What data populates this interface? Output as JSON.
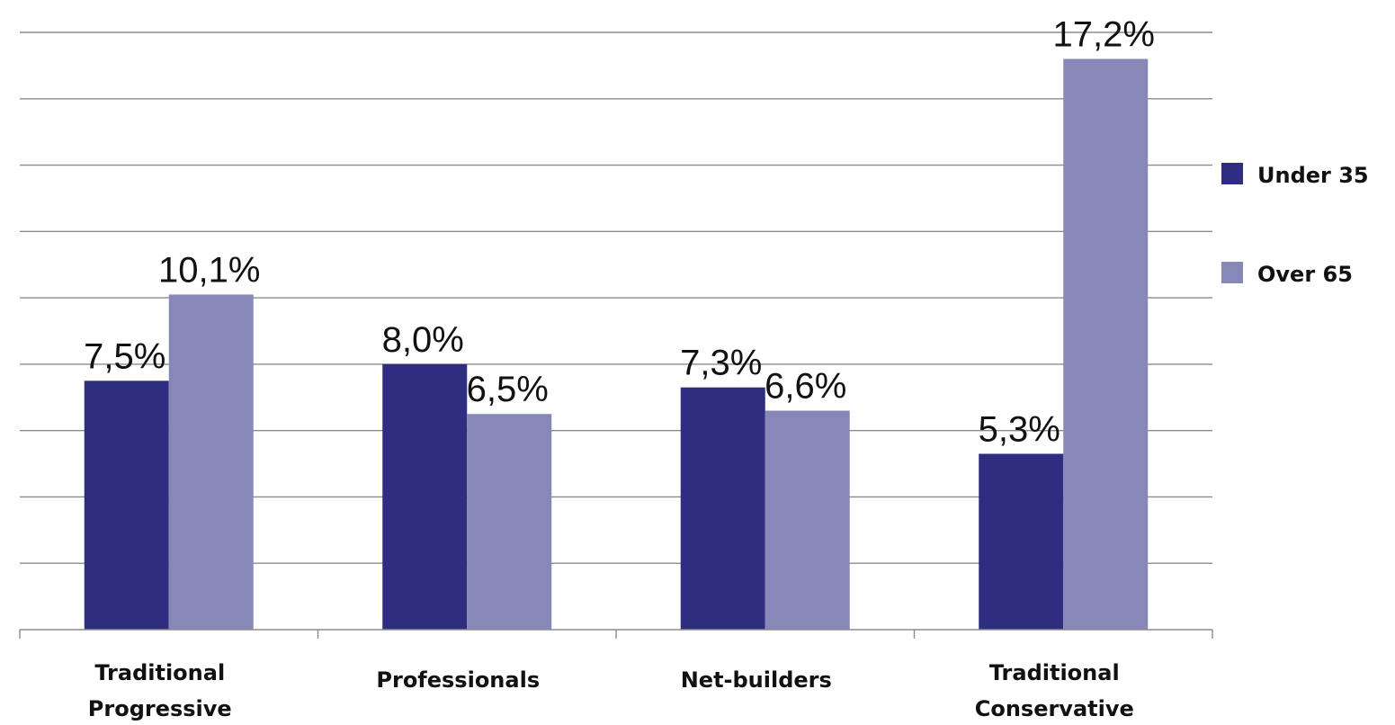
{
  "chart_data": {
    "type": "bar",
    "categories": [
      [
        "Traditional",
        "Progressive"
      ],
      [
        "Professionals"
      ],
      [
        "Net-builders"
      ],
      [
        "Traditional",
        "Conservative"
      ]
    ],
    "series": [
      {
        "name": "Under 35",
        "color": "#2e2d7f",
        "values": [
          7.5,
          8.0,
          7.3,
          5.3
        ],
        "labels": [
          "7,5%",
          "8,0%",
          "7,3%",
          "5,3%"
        ]
      },
      {
        "name": "Over 65",
        "color": "#8888b8",
        "values": [
          10.1,
          6.5,
          6.6,
          17.2
        ],
        "labels": [
          "10,1%",
          "6,5%",
          "6,6%",
          "17,2%"
        ]
      }
    ],
    "ylim": [
      0,
      18
    ],
    "grid": true,
    "legend_position": "right",
    "title": "",
    "xlabel": "",
    "ylabel": ""
  }
}
